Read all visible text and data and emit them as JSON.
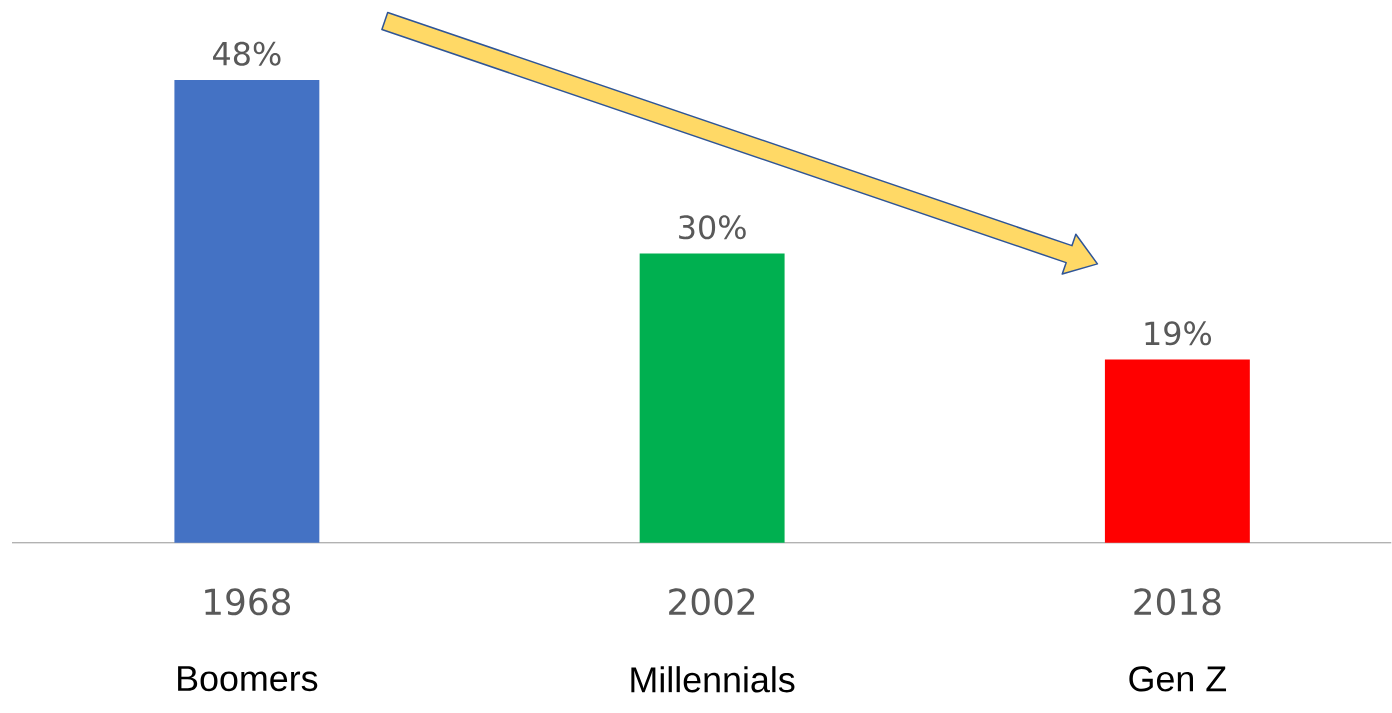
{
  "chart_data": {
    "type": "bar",
    "categories": [
      "1968",
      "2002",
      "2018"
    ],
    "values": [
      48,
      30,
      19
    ],
    "colors": [
      "#4472c4",
      "#00b050",
      "#ff0000"
    ],
    "value_labels": [
      "48%",
      "30%",
      "19%"
    ],
    "annotations": [
      "Boomers",
      "Millennials",
      "Gen Z"
    ]
  }
}
